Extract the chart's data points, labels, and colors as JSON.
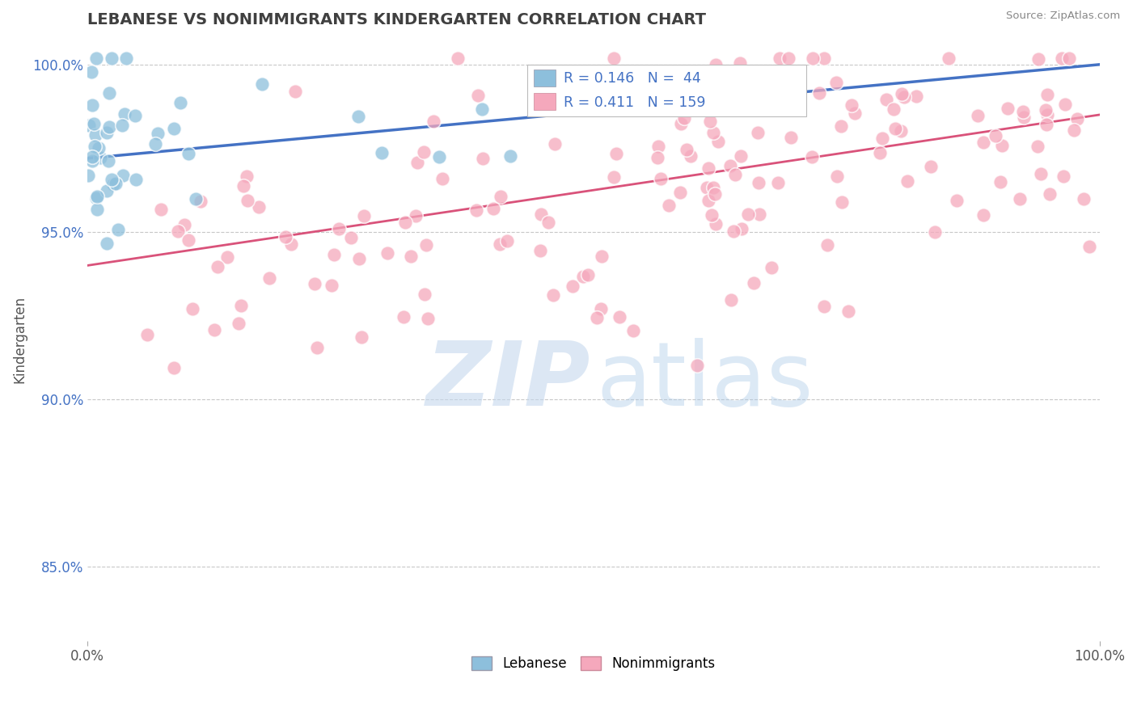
{
  "title": "LEBANESE VS NONIMMIGRANTS KINDERGARTEN CORRELATION CHART",
  "source_text": "Source: ZipAtlas.com",
  "ylabel": "Kindergarten",
  "xlim": [
    0,
    1.0
  ],
  "ylim": [
    0.828,
    1.008
  ],
  "yticks": [
    0.85,
    0.9,
    0.95,
    1.0
  ],
  "ytick_labels": [
    "85.0%",
    "90.0%",
    "95.0%",
    "100.0%"
  ],
  "xticks": [
    0.0,
    1.0
  ],
  "xtick_labels": [
    "0.0%",
    "100.0%"
  ],
  "R_blue": 0.146,
  "N_blue": 44,
  "R_pink": 0.411,
  "N_pink": 159,
  "blue_color": "#8dbfdc",
  "pink_color": "#f5a8bc",
  "blue_line_color": "#4472c4",
  "pink_line_color": "#d9527a",
  "background_color": "#ffffff",
  "grid_color": "#c8c8c8",
  "title_color": "#404040",
  "watermark_zip_color": "#c5d8ee",
  "watermark_atlas_color": "#a8c8e8",
  "seed": 7,
  "blue_line_start_y": 0.972,
  "blue_line_end_y": 1.0,
  "pink_line_start_y": 0.94,
  "pink_line_end_y": 0.985
}
